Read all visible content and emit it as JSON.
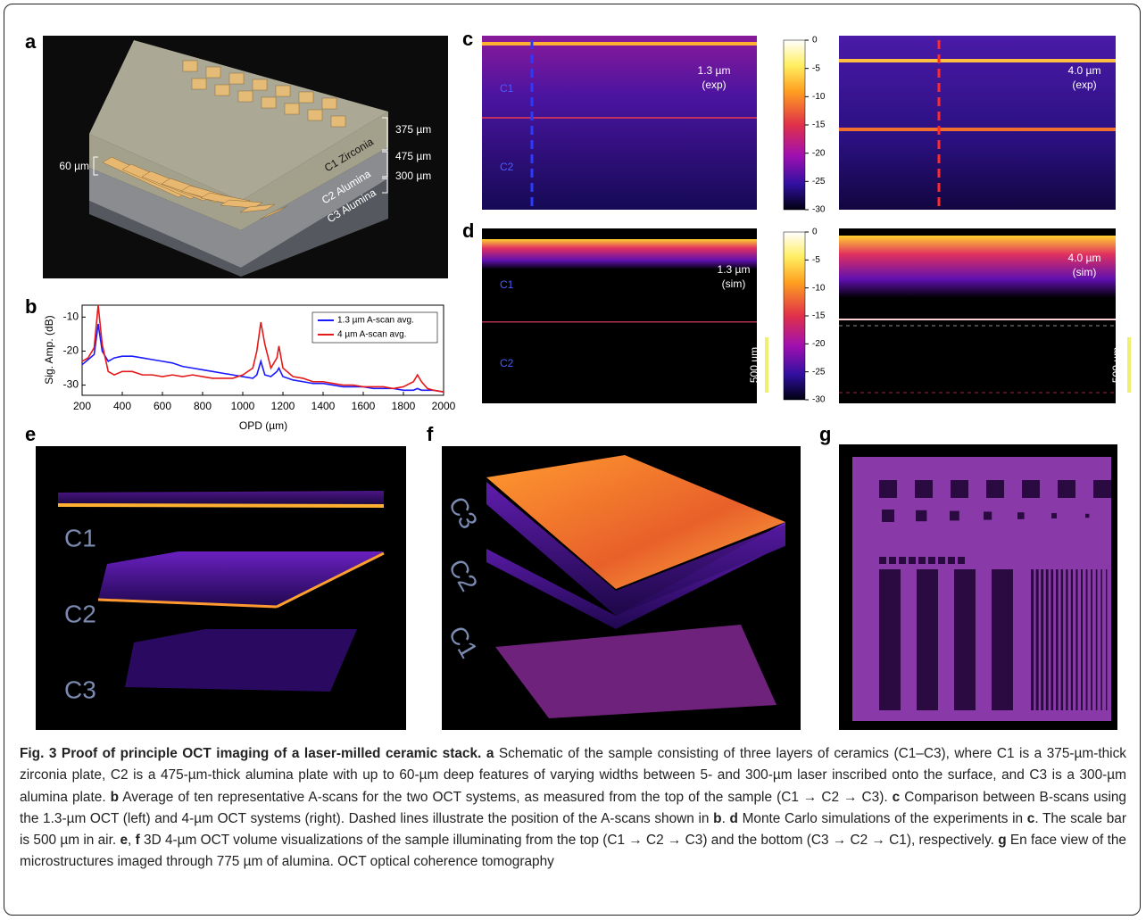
{
  "panel_labels": [
    "a",
    "b",
    "c",
    "d",
    "e",
    "f",
    "g"
  ],
  "panel_a": {
    "thicknesses": [
      "375 µm",
      "475 µm",
      "300 µm"
    ],
    "feature_depth": "60 µm",
    "layers": [
      "C1 Zirconia",
      "C2 Alumina",
      "C3 Alumina"
    ]
  },
  "chart_data": {
    "type": "line",
    "x_label": "OPD (µm)",
    "y_label": "Sig. Amp. (dB)",
    "x": [
      200,
      230,
      260,
      280,
      300,
      330,
      360,
      400,
      450,
      500,
      550,
      600,
      650,
      700,
      750,
      800,
      850,
      900,
      950,
      1000,
      1050,
      1070,
      1090,
      1110,
      1140,
      1170,
      1180,
      1200,
      1250,
      1300,
      1350,
      1400,
      1450,
      1500,
      1550,
      1600,
      1650,
      1700,
      1750,
      1800,
      1850,
      1870,
      1890,
      1920,
      1950,
      2000
    ],
    "series": [
      {
        "name": "1.3 µm A-scan avg.",
        "color": "#1a1aff",
        "values": [
          -24,
          -22.5,
          -21,
          -12,
          -20,
          -23,
          -22,
          -21.5,
          -21.5,
          -22,
          -22.5,
          -23,
          -23.5,
          -24.5,
          -25,
          -25.5,
          -26,
          -26.5,
          -27,
          -27.5,
          -28,
          -27,
          -23,
          -27,
          -27.5,
          -26,
          -25,
          -27.5,
          -28.5,
          -29,
          -29.5,
          -29.5,
          -30,
          -30.5,
          -30.5,
          -30.5,
          -31,
          -31,
          -31,
          -31.5,
          -31.5,
          -31,
          -31.5,
          -31.5,
          -31.5,
          -32
        ]
      },
      {
        "name": "4 µm A-scan avg.",
        "color": "#e41a1a",
        "values": [
          -23,
          -22,
          -19,
          -6.5,
          -18,
          -26,
          -27,
          -26,
          -26,
          -27,
          -27,
          -27.5,
          -27,
          -27.5,
          -27,
          -27.5,
          -28,
          -28,
          -28,
          -27,
          -25,
          -20,
          -11.5,
          -18,
          -25,
          -22,
          -18.5,
          -25,
          -27.5,
          -28,
          -29,
          -29,
          -29.5,
          -30,
          -30,
          -30.5,
          -30.5,
          -30.5,
          -31,
          -30.5,
          -29,
          -27,
          -29,
          -31,
          -31.5,
          -32
        ]
      }
    ],
    "xlim": [
      200,
      2000
    ],
    "xticks": [
      200,
      400,
      600,
      800,
      1000,
      1200,
      1400,
      1600,
      1800,
      2000
    ],
    "ylim": [
      -33,
      -6.5
    ],
    "yticks": [
      -10,
      -20,
      -30
    ],
    "legend": "upper right"
  },
  "panel_c": {
    "left_label": [
      "1.3 µm",
      "(exp)"
    ],
    "right_label": [
      "4.0 µm",
      "(exp)"
    ],
    "layers": [
      "C1",
      "C2"
    ],
    "colorbar": {
      "lim": [
        -30,
        0
      ],
      "ticks": [
        0,
        -5,
        -10,
        -15,
        -20,
        -25,
        -30
      ]
    }
  },
  "panel_d": {
    "left_label": [
      "1.3 µm",
      "(sim)"
    ],
    "right_label": [
      "4.0 µm",
      "(sim)"
    ],
    "layers": [
      "C1",
      "C2"
    ],
    "scale_bar": "500 µm",
    "colorbar": {
      "lim": [
        -30,
        0
      ],
      "ticks": [
        0,
        -5,
        -10,
        -15,
        -20,
        -25,
        -30
      ]
    }
  },
  "panel_e": {
    "layers": [
      "C1",
      "C2",
      "C3"
    ]
  },
  "panel_f": {
    "layers": [
      "C3",
      "C2",
      "C1"
    ]
  },
  "caption": {
    "runs": [
      {
        "text": "Fig. 3 Proof of principle OCT imaging of a laser-milled ceramic stack. ",
        "bold": true
      },
      {
        "text": "a",
        "bold": true
      },
      " Schematic of the sample consisting of three layers of ceramics (C1–C3), where C1 is a 375-µm-thick zirconia plate, C2 is a 475-µm-thick alumina plate with up to 60-µm deep features of varying widths between 5- and 300-µm laser inscribed onto the surface, and C3 is a 300-µm alumina plate. ",
      {
        "text": "b",
        "bold": true
      },
      " Average of ten representative A-scans for the two OCT systems, as measured from the top of the sample (C1 → C2 → C3). ",
      {
        "text": "c",
        "bold": true
      },
      " Comparison between B-scans using the 1.3-µm OCT (left) and 4-µm OCT systems (right). Dashed lines illustrate the position of the A-scans shown in ",
      {
        "text": "b",
        "bold": true
      },
      ". ",
      {
        "text": "d",
        "bold": true
      },
      " Monte Carlo simulations of the experiments in ",
      {
        "text": "c",
        "bold": true
      },
      ". The scale bar is 500 µm in air. ",
      {
        "text": "e",
        "bold": true
      },
      ", ",
      {
        "text": "f",
        "bold": true
      },
      " 3D 4-µm OCT volume visualizations of the sample illuminating from the top (C1 → C2 → C3) and the bottom (C3 → C2 → C1), respectively. ",
      {
        "text": "g",
        "bold": true
      },
      " En face view of the microstructures imaged through 775 µm of alumina. OCT optical coherence tomography"
    ]
  }
}
